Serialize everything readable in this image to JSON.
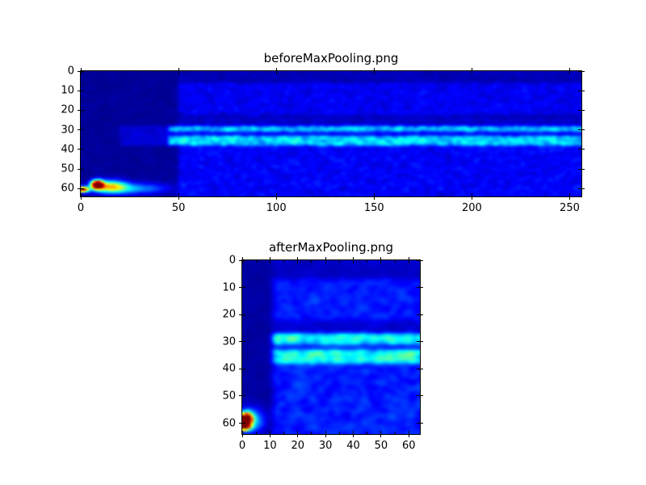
{
  "figure": {
    "background_color": "#ffffff",
    "spine_color": "#000000",
    "text_color": "#000000"
  },
  "chart_data": [
    {
      "type": "heatmap",
      "title": "beforeMaxPooling.png",
      "xlabel": "",
      "ylabel": "",
      "colormap": "jet",
      "x_range": [
        0,
        256
      ],
      "y_range": [
        0,
        64
      ],
      "y_axis_inverted": true,
      "x_ticks": [
        0,
        50,
        100,
        150,
        200,
        250
      ],
      "y_ticks": [
        0,
        10,
        20,
        30,
        40,
        50,
        60
      ],
      "x_minor_step": null,
      "grid_cols": 256,
      "grid_rows": 64,
      "legend": null,
      "grid_lines": false,
      "image_synthesis": {
        "seed": 1337,
        "base": {
          "value": 0.0,
          "noise": 0.05
        },
        "regions": [
          {
            "name": "right-noise-field",
            "x": [
              50,
              256
            ],
            "y": [
              0,
              64
            ],
            "value": 0.05,
            "noise": 0.13
          },
          {
            "name": "top-dark-rows",
            "x": [
              50,
              256
            ],
            "y": [
              0,
              6
            ],
            "value": 0.02,
            "noise": 0.07
          },
          {
            "name": "mid-dark-lane",
            "x": [
              50,
              256
            ],
            "y": [
              22,
              28
            ],
            "value": 0.03,
            "noise": 0.08
          },
          {
            "name": "left-quiet-block",
            "x": [
              0,
              50
            ],
            "y": [
              0,
              64
            ],
            "value": 0.0,
            "noise": 0.05
          },
          {
            "name": "left-band-shadow",
            "x": [
              20,
              50
            ],
            "y": [
              28,
              38
            ],
            "value": 0.05,
            "noise": 0.07
          },
          {
            "name": "band-upper",
            "x": [
              45,
              256
            ],
            "y": [
              28,
              31
            ],
            "value": 0.15,
            "noise": 0.32
          },
          {
            "name": "band-gap",
            "x": [
              45,
              256
            ],
            "y": [
              31,
              33
            ],
            "value": 0.06,
            "noise": 0.09
          },
          {
            "name": "band-lower",
            "x": [
              45,
              256
            ],
            "y": [
              33,
              38
            ],
            "value": 0.17,
            "noise": 0.34
          },
          {
            "name": "lower-noise-field",
            "x": [
              50,
              256
            ],
            "y": [
              38,
              64
            ],
            "value": 0.05,
            "noise": 0.14
          }
        ],
        "hotspots": [
          {
            "name": "hotspot-red-core",
            "x": 8,
            "y": 57.5,
            "rx": 2.2,
            "ry": 1.6,
            "peak": 1.15
          },
          {
            "name": "hotspot-edge-streak",
            "x": 0.5,
            "y": 60,
            "rx": 2.2,
            "ry": 1.0,
            "peak": 0.95
          },
          {
            "name": "hotspot-warm-tail",
            "x": 15,
            "y": 58.5,
            "rx": 5.5,
            "ry": 2.2,
            "peak": 0.55
          },
          {
            "name": "hotspot-cool-tail",
            "x": 27,
            "y": 59.5,
            "rx": 12.0,
            "ry": 2.0,
            "peak": 0.25
          }
        ]
      }
    },
    {
      "type": "heatmap",
      "title": "afterMaxPooling.png",
      "xlabel": "",
      "ylabel": "",
      "colormap": "jet",
      "x_range": [
        0,
        64
      ],
      "y_range": [
        0,
        64
      ],
      "y_axis_inverted": true,
      "x_ticks": [
        0,
        10,
        20,
        30,
        40,
        50,
        60
      ],
      "y_ticks": [
        0,
        10,
        20,
        30,
        40,
        50,
        60
      ],
      "x_minor_step": 5,
      "grid_cols": 64,
      "grid_rows": 64,
      "legend": null,
      "grid_lines": false,
      "image_synthesis": {
        "seed": 4242,
        "base": {
          "value": 0.01,
          "noise": 0.05
        },
        "regions": [
          {
            "name": "noise-field",
            "x": [
              11,
              64
            ],
            "y": [
              0,
              64
            ],
            "value": 0.07,
            "noise": 0.16
          },
          {
            "name": "top-dark-rows",
            "x": [
              11,
              64
            ],
            "y": [
              0,
              7
            ],
            "value": 0.03,
            "noise": 0.08
          },
          {
            "name": "mid-dark-lane",
            "x": [
              11,
              64
            ],
            "y": [
              22,
              27
            ],
            "value": 0.04,
            "noise": 0.09
          },
          {
            "name": "left-quiet-column",
            "x": [
              0,
              11
            ],
            "y": [
              0,
              64
            ],
            "value": 0.01,
            "noise": 0.05
          },
          {
            "name": "band-upper",
            "x": [
              11,
              64
            ],
            "y": [
              27,
              31
            ],
            "value": 0.2,
            "noise": 0.36
          },
          {
            "name": "band-gap",
            "x": [
              11,
              64
            ],
            "y": [
              31,
              33
            ],
            "value": 0.08,
            "noise": 0.1
          },
          {
            "name": "band-lower",
            "x": [
              11,
              64
            ],
            "y": [
              33,
              38
            ],
            "value": 0.22,
            "noise": 0.38
          },
          {
            "name": "lower-noise-field",
            "x": [
              11,
              64
            ],
            "y": [
              38,
              64
            ],
            "value": 0.07,
            "noise": 0.17
          }
        ],
        "hotspots": [
          {
            "name": "hotspot-red-core",
            "x": 1,
            "y": 58,
            "rx": 1.4,
            "ry": 1.6,
            "peak": 1.2
          },
          {
            "name": "hotspot-edge-streak",
            "x": 0,
            "y": 61,
            "rx": 1.6,
            "ry": 0.9,
            "peak": 0.8
          },
          {
            "name": "hotspot-halo",
            "x": 2.5,
            "y": 58.5,
            "rx": 3.2,
            "ry": 3.0,
            "peak": 0.35
          }
        ]
      }
    }
  ]
}
